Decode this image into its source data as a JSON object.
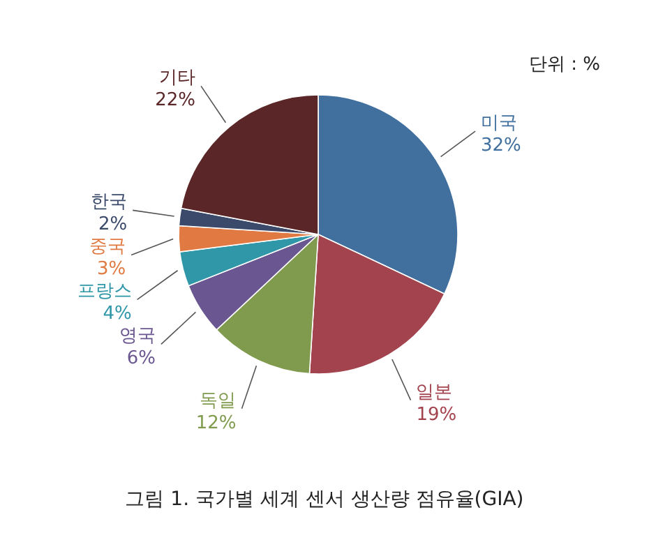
{
  "chart_data": {
    "type": "pie",
    "title": "그림 1. 국가별 세계 센서 생산량 점유율(GIA)",
    "annotations": [
      "단위 : %"
    ],
    "categories": [
      "미국",
      "일본",
      "독일",
      "영국",
      "프랑스",
      "중국",
      "한국",
      "기타"
    ],
    "values": [
      32,
      19,
      12,
      6,
      4,
      3,
      2,
      22
    ],
    "colors": [
      "#41709f",
      "#a2434e",
      "#809b4e",
      "#6a5691",
      "#2f97a8",
      "#e07a42",
      "#3b4a6b",
      "#5a2628"
    ],
    "value_labels": [
      "32%",
      "19%",
      "12%",
      "6%",
      "4%",
      "3%",
      "2%",
      "22%"
    ]
  }
}
